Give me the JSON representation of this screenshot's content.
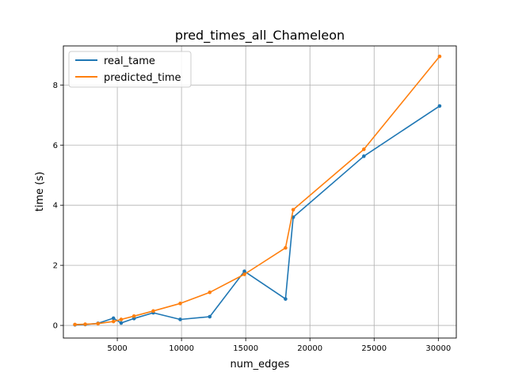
{
  "chart_data": {
    "type": "line",
    "title": "pred_times_all_Chameleon",
    "xlabel": "num_edges",
    "ylabel": "time (s)",
    "xlim": [
      800,
      31400
    ],
    "ylim": [
      -0.42,
      9.3
    ],
    "xticks": [
      5000,
      10000,
      15000,
      20000,
      25000,
      30000
    ],
    "yticks": [
      0,
      2,
      4,
      6,
      8
    ],
    "grid": true,
    "legend_position": "top-left",
    "series": [
      {
        "name": "real_tame",
        "color": "#1f77b4",
        "x": [
          1700,
          2500,
          3500,
          4700,
          5300,
          6300,
          7800,
          9900,
          12200,
          14900,
          18100,
          18700,
          24200,
          30100
        ],
        "y": [
          0.02,
          0.03,
          0.07,
          0.24,
          0.08,
          0.23,
          0.42,
          0.2,
          0.29,
          1.8,
          0.88,
          3.6,
          5.63,
          7.3
        ]
      },
      {
        "name": "predicted_time",
        "color": "#ff7f0e",
        "x": [
          1700,
          2500,
          3500,
          4700,
          5300,
          6300,
          7800,
          9900,
          12200,
          14900,
          18100,
          18700,
          24200,
          30100
        ],
        "y": [
          0.03,
          0.04,
          0.06,
          0.13,
          0.2,
          0.31,
          0.48,
          0.73,
          1.1,
          1.7,
          2.58,
          3.85,
          5.86,
          8.95
        ]
      }
    ]
  }
}
